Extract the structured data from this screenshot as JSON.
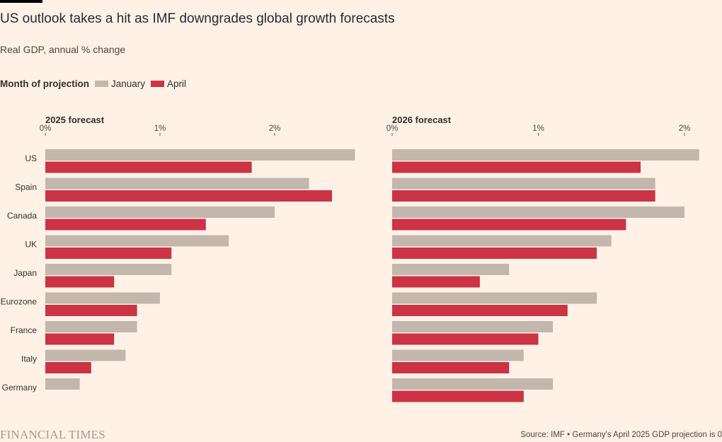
{
  "title": "US outlook takes a hit as IMF downgrades global growth forecasts",
  "subtitle": "Real GDP, annual % change",
  "legend": {
    "title": "Month of projection",
    "items": [
      "January",
      "April"
    ]
  },
  "colors": {
    "January": "#c2b6ad",
    "April": "#cc3344"
  },
  "footer": {
    "logo": "FINANCIAL TIMES",
    "source": "Source: IMF • Germany's April 2025 GDP projection is 0"
  },
  "chart_data": [
    {
      "type": "bar",
      "orientation": "horizontal",
      "title": "2025 forecast",
      "categories": [
        "US",
        "Spain",
        "Canada",
        "UK",
        "Japan",
        "Eurozone",
        "France",
        "Italy",
        "Germany"
      ],
      "series": [
        {
          "name": "January",
          "values": [
            2.7,
            2.3,
            2.0,
            1.6,
            1.1,
            1.0,
            0.8,
            0.7,
            0.3
          ]
        },
        {
          "name": "April",
          "values": [
            1.8,
            2.5,
            1.4,
            1.1,
            0.6,
            0.8,
            0.6,
            0.4,
            0.0
          ]
        }
      ],
      "xlim": [
        0,
        2.75
      ],
      "xticks": [
        "0%",
        "1%",
        "2%"
      ],
      "tick_values": [
        0,
        1,
        2
      ]
    },
    {
      "type": "bar",
      "orientation": "horizontal",
      "title": "2026 forecast",
      "categories": [
        "US",
        "Spain",
        "Canada",
        "UK",
        "Japan",
        "Eurozone",
        "France",
        "Italy",
        "Germany"
      ],
      "series": [
        {
          "name": "January",
          "values": [
            2.1,
            1.8,
            2.0,
            1.5,
            0.8,
            1.4,
            1.1,
            0.9,
            1.1
          ]
        },
        {
          "name": "April",
          "values": [
            1.7,
            1.8,
            1.6,
            1.4,
            0.6,
            1.2,
            1.0,
            0.8,
            0.9
          ]
        }
      ],
      "xlim": [
        0,
        2.2
      ],
      "xticks": [
        "0%",
        "1%",
        "2%"
      ],
      "tick_values": [
        0,
        1,
        2
      ]
    }
  ]
}
